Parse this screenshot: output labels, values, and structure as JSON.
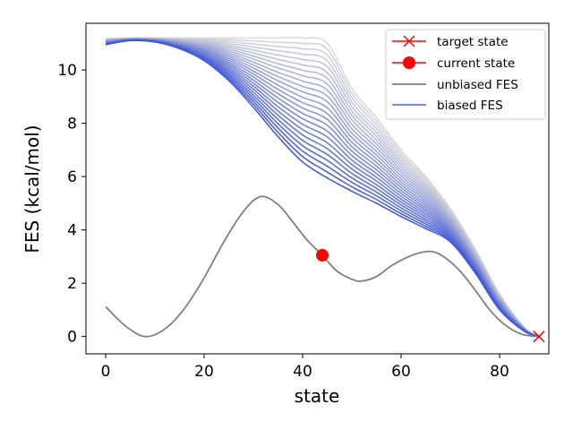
{
  "chart_data": {
    "type": "line",
    "title": "",
    "xlabel": "state",
    "ylabel": "FES (kcal/mol)",
    "xlim": [
      -4,
      90
    ],
    "ylim": [
      -0.65,
      11.75
    ],
    "x_ticks": [
      0,
      20,
      40,
      60,
      80
    ],
    "y_ticks": [
      0,
      2,
      4,
      6,
      8,
      10
    ],
    "grid": false,
    "legend_position": "top-right",
    "legend": [
      {
        "label": "target state",
        "marker": "x",
        "color": "#ff0000"
      },
      {
        "label": "current state",
        "marker": "circle",
        "color": "#ff0000"
      },
      {
        "label": "unbiased FES",
        "marker": "line",
        "color": "#808080"
      },
      {
        "label": "biased FES",
        "marker": "line",
        "color": "#5b7fe0"
      }
    ],
    "target_state": {
      "x": 88,
      "y": 0.0
    },
    "current_state": {
      "x": 44,
      "y": 3.05
    },
    "unbiased_fes": {
      "x": [
        0,
        4,
        8,
        12,
        16,
        20,
        24,
        28,
        31.5,
        35,
        38,
        41,
        44,
        47,
        50,
        52,
        55,
        58,
        61,
        64,
        66.5,
        69,
        72,
        75,
        78,
        81,
        84,
        86,
        88
      ],
      "y": [
        1.12,
        0.4,
        0.0,
        0.28,
        1.05,
        2.2,
        3.55,
        4.7,
        5.25,
        4.95,
        4.3,
        3.6,
        3.05,
        2.45,
        2.15,
        2.08,
        2.25,
        2.65,
        2.95,
        3.15,
        3.18,
        2.95,
        2.45,
        1.75,
        1.0,
        0.45,
        0.12,
        0.03,
        0.0
      ]
    },
    "biased_fes": {
      "count": 24,
      "color_start": "#3d55d6",
      "color_end": "#d9d9d9",
      "x": [
        0,
        5,
        10,
        15,
        20,
        25,
        30,
        35,
        40,
        45,
        50,
        55,
        60,
        65,
        70,
        75,
        80,
        85,
        88
      ],
      "first": [
        10.95,
        11.1,
        11.05,
        10.8,
        10.35,
        9.6,
        8.6,
        7.5,
        6.55,
        5.95,
        5.45,
        5.0,
        4.5,
        4.05,
        3.55,
        2.4,
        1.0,
        0.2,
        0.0
      ],
      "last": [
        11.18,
        11.2,
        11.2,
        11.2,
        11.2,
        11.2,
        11.2,
        11.2,
        11.2,
        11.0,
        9.3,
        8.2,
        7.0,
        6.0,
        4.8,
        3.3,
        1.6,
        0.35,
        0.0
      ]
    }
  }
}
